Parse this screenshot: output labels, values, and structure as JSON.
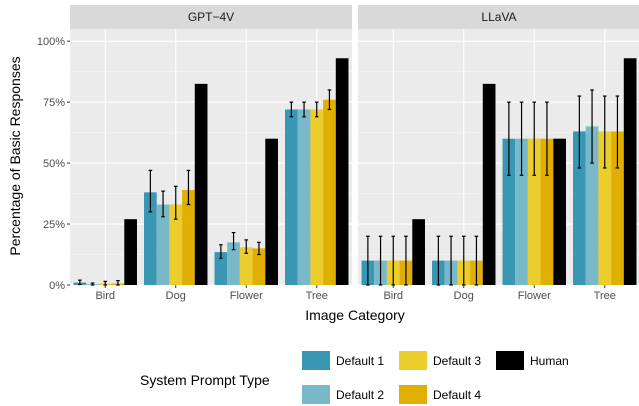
{
  "chart_data": {
    "type": "bar",
    "xlabel": "Image Category",
    "ylabel": "Percentage of Basic Responses",
    "ylim": [
      0,
      105
    ],
    "y_ticks": [
      "0%",
      "25%",
      "50%",
      "75%",
      "100%"
    ],
    "y_tick_values": [
      0,
      25,
      50,
      75,
      100
    ],
    "categories": [
      "Bird",
      "Dog",
      "Flower",
      "Tree"
    ],
    "grid": true,
    "legend": {
      "title": "System Prompt Type",
      "position": "bottom",
      "items": [
        "Default 1",
        "Default 2",
        "Default 3",
        "Default 4",
        "Human"
      ]
    },
    "series_colors": [
      "#3a97b3",
      "#78b8c8",
      "#ebcd2c",
      "#e1ae03",
      "#000000"
    ],
    "panels": [
      {
        "strip": "GPT−4V",
        "series": [
          {
            "name": "Default 1",
            "values": [
              1,
              38,
              13.5,
              72
            ],
            "err_low": [
              0.2,
              30,
              11,
              69
            ],
            "err_high": [
              2,
              47,
              16.5,
              75
            ]
          },
          {
            "name": "Default 2",
            "values": [
              0.3,
              33,
              17.5,
              72
            ],
            "err_low": [
              0,
              28,
              14.5,
              69
            ],
            "err_high": [
              0.8,
              38.5,
              21.5,
              75
            ]
          },
          {
            "name": "Default 3",
            "values": [
              0.6,
              33,
              15.5,
              72
            ],
            "err_low": [
              0,
              27,
              13,
              69
            ],
            "err_high": [
              1.5,
              40.5,
              18.5,
              75
            ]
          },
          {
            "name": "Default 4",
            "values": [
              0.6,
              39,
              15,
              76
            ],
            "err_low": [
              0,
              33,
              12.5,
              72
            ],
            "err_high": [
              1.8,
              47,
              17.5,
              80
            ]
          },
          {
            "name": "Human",
            "values": [
              27,
              82.5,
              60,
              93
            ]
          }
        ]
      },
      {
        "strip": "LLaVA",
        "series": [
          {
            "name": "Default 1",
            "values": [
              10,
              10,
              60,
              63
            ],
            "err_low": [
              0,
              0,
              45,
              48
            ],
            "err_high": [
              20,
              20,
              75,
              77.5
            ]
          },
          {
            "name": "Default 2",
            "values": [
              10,
              10,
              60,
              65
            ],
            "err_low": [
              0,
              0,
              45,
              50
            ],
            "err_high": [
              20,
              20,
              75,
              80
            ]
          },
          {
            "name": "Default 3",
            "values": [
              10,
              10,
              60,
              63
            ],
            "err_low": [
              0,
              0,
              45,
              48
            ],
            "err_high": [
              20,
              20,
              75,
              77.5
            ]
          },
          {
            "name": "Default 4",
            "values": [
              10,
              10,
              60,
              63
            ],
            "err_low": [
              0,
              0,
              45,
              48
            ],
            "err_high": [
              20,
              20,
              75,
              77.5
            ]
          },
          {
            "name": "Human",
            "values": [
              27,
              82.5,
              60,
              93
            ]
          }
        ]
      }
    ]
  }
}
